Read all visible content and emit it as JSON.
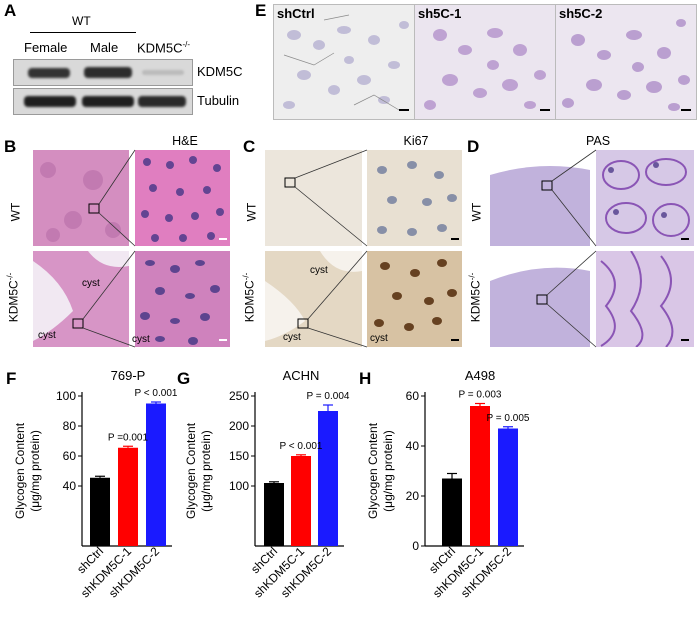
{
  "panels": {
    "A": {
      "letter": "A",
      "group_label": "WT",
      "lanes": [
        "Female",
        "Male",
        "KDM5C-/-"
      ],
      "rows": [
        "KDM5C",
        "Tubulin"
      ]
    },
    "B": {
      "letter": "B",
      "title": "H&E",
      "row_wt": "WT",
      "row_ko": "KDM5C-/-",
      "cyst_labels": [
        "cyst",
        "cyst",
        "cyst"
      ]
    },
    "C": {
      "letter": "C",
      "title": "Ki67",
      "row_wt": "WT",
      "row_ko": "KDM5C-/-",
      "cyst_labels": [
        "cyst",
        "cyst",
        "cyst"
      ]
    },
    "D": {
      "letter": "D",
      "title": "PAS",
      "row_wt": "WT",
      "row_ko": "KDM5C-/-"
    },
    "E": {
      "letter": "E",
      "labels": [
        "shCtrl",
        "sh5C-1",
        "sh5C-2"
      ]
    }
  },
  "colors": {
    "he_bg": "#d98fc2",
    "he_cell": "#6a3f8e",
    "ki_bg": "#e9e1d4",
    "ki_pos": "#7a4a1c",
    "pas_bg": "#c4b6dd",
    "pas_line": "#8a55b5",
    "bar_black": "#000000",
    "bar_red": "#ff0000",
    "bar_blue": "#1a1aff"
  },
  "chart_data": [
    {
      "letter": "F",
      "type": "bar",
      "title": "769-P",
      "ylabel": "Glycogen Content",
      "ylabel2": "(μg/mg protein)",
      "categories": [
        "shCtrl",
        "shKDM5C-1",
        "shKDM5C-2"
      ],
      "values": [
        45.5,
        65.5,
        95
      ],
      "errors": [
        1,
        1,
        1
      ],
      "ylim": [
        0,
        100
      ],
      "yticks": [
        40,
        60,
        80,
        100
      ],
      "annotations": [
        "P =0.001",
        "P < 0.001"
      ]
    },
    {
      "letter": "G",
      "type": "bar",
      "title": "ACHN",
      "ylabel": "Glycogen Content",
      "ylabel2": "(μg/mg protein)",
      "categories": [
        "shCtrl",
        "shKDM5C-1",
        "shKDM5C-2"
      ],
      "values": [
        105,
        150,
        225
      ],
      "errors": [
        2,
        2,
        10
      ],
      "ylim": [
        0,
        250
      ],
      "yticks": [
        100,
        150,
        200,
        250
      ],
      "annotations": [
        "P < 0.001",
        "P = 0.004"
      ]
    },
    {
      "letter": "H",
      "type": "bar",
      "title": "A498",
      "ylabel": "Glycogen Content",
      "ylabel2": "(μg/mg protein)",
      "categories": [
        "shCtrl",
        "shKDM5C-1",
        "shKDM5C-2"
      ],
      "values": [
        27,
        56,
        47
      ],
      "errors": [
        2,
        1,
        0.7
      ],
      "ylim": [
        0,
        60
      ],
      "yticks": [
        0,
        20,
        40,
        60
      ],
      "annotations": [
        "P = 0.003",
        "P = 0.005"
      ]
    }
  ]
}
